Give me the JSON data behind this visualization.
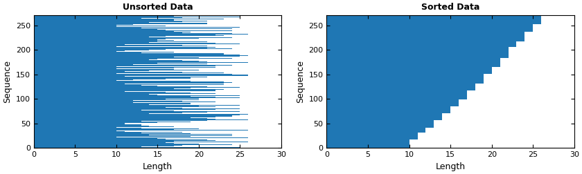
{
  "n_sequences": 270,
  "seed": 7,
  "bar_color": "#1f77b4",
  "title_left": "Unsorted Data",
  "title_right": "Sorted Data",
  "xlabel": "Length",
  "ylabel": "Sequence",
  "xlim": [
    0,
    30
  ],
  "ylim": [
    0,
    270
  ],
  "xticks": [
    0,
    5,
    10,
    15,
    20,
    25,
    30
  ],
  "yticks": [
    0,
    50,
    100,
    150,
    200,
    250
  ],
  "figsize": [
    8.4,
    2.52
  ],
  "dpi": 100,
  "title_fontsize": 9,
  "label_fontsize": 9
}
